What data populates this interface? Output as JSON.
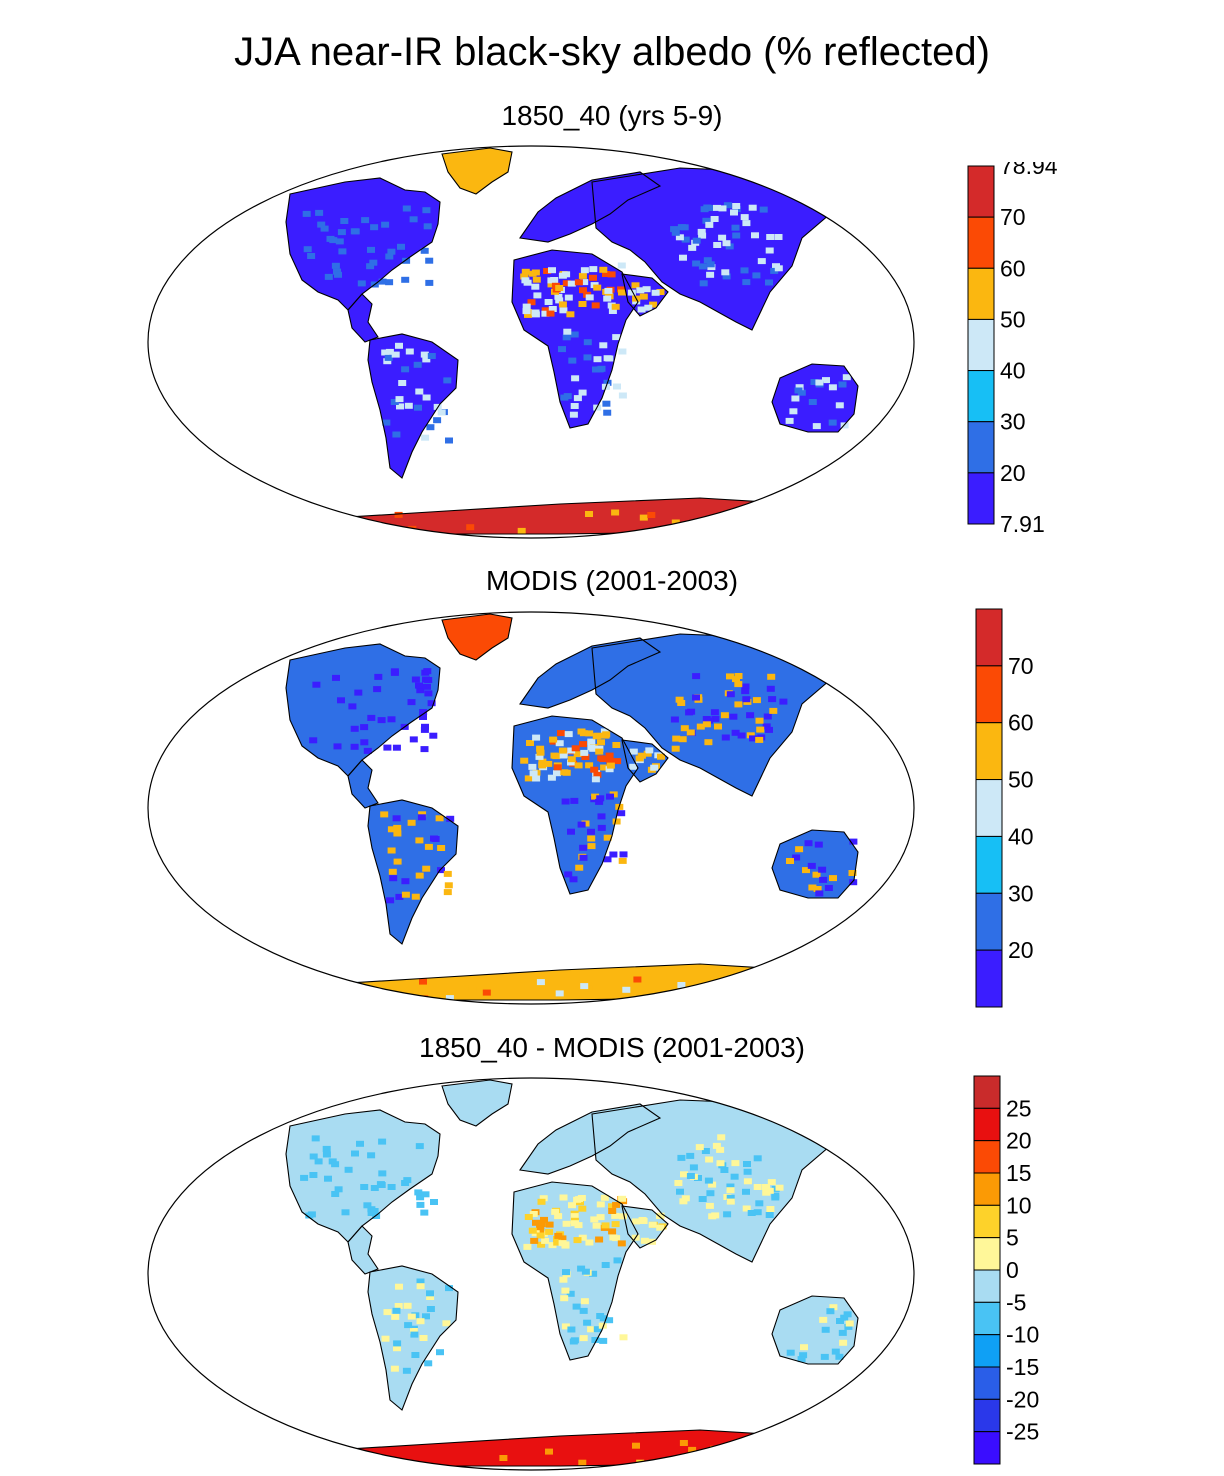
{
  "title": "JJA near-IR black-sky albedo (% reflected)",
  "panels": [
    {
      "id": "model",
      "subtitle": "1850_40 (yrs 5-9)",
      "colors": [
        "#3b1dff",
        "#2f6fe6",
        "#17bff5",
        "#cde8f7",
        "#fbb710",
        "#fb4a05",
        "#d42a2a"
      ],
      "labels": [
        "7.91",
        "20",
        "30",
        "40",
        "50",
        "60",
        "70",
        "78.94"
      ],
      "label_mode": "boundaries_with_ends",
      "land": "#3b1dff",
      "land2": "#2f6fe6",
      "desert": "#cde8f7",
      "desert2": "#fbb710",
      "hot": "#fb4a05",
      "greenland": "#fbb710",
      "antarctica": "#d42a2a"
    },
    {
      "id": "obs",
      "subtitle": "MODIS (2001-2003)",
      "colors": [
        "#3b1dff",
        "#2f6fe6",
        "#17bff5",
        "#cde8f7",
        "#fbb710",
        "#fb4a05",
        "#d42a2a"
      ],
      "labels": [
        "20",
        "30",
        "40",
        "50",
        "60",
        "70"
      ],
      "label_mode": "interior",
      "land": "#2f6fe6",
      "land2": "#3b1dff",
      "desert": "#fbb710",
      "desert2": "#cde8f7",
      "hot": "#fb4a05",
      "greenland": "#fb4a05",
      "antarctica": "#fbb710"
    },
    {
      "id": "diff",
      "subtitle": "1850_40 - MODIS (2001-2003)",
      "colors": [
        "#3a0dff",
        "#2a38ea",
        "#2a5ee8",
        "#0fa0f5",
        "#49c3f4",
        "#a9dcf2",
        "#fff799",
        "#fdd22a",
        "#fb9a05",
        "#fb4a05",
        "#e81010",
        "#c92b2b"
      ],
      "labels": [
        "-25",
        "-20",
        "-15",
        "-10",
        "-5",
        "0",
        "5",
        "10",
        "15",
        "20",
        "25"
      ],
      "label_mode": "interior",
      "land": "#a9dcf2",
      "land2": "#49c3f4",
      "desert": "#fff799",
      "desert2": "#fdd22a",
      "hot": "#fb9a05",
      "greenland": "#a9dcf2",
      "antarctica": "#e81010"
    }
  ]
}
